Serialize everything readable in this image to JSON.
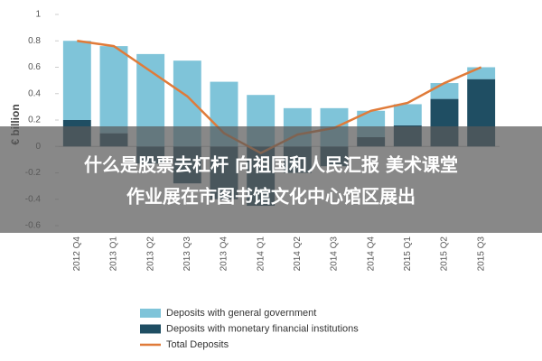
{
  "chart_data": {
    "type": "bar",
    "y_axis_label": "€ billion",
    "categories": [
      "2012 Q4",
      "2013 Q1",
      "2013 Q2",
      "2013 Q3",
      "2013 Q4",
      "2014 Q1",
      "2014 Q2",
      "2014 Q3",
      "2014 Q4",
      "2015 Q1",
      "2015 Q2",
      "2015 Q3"
    ],
    "series": [
      {
        "name": "Deposits with general government",
        "type": "bar",
        "color": "#7fc4d9",
        "values": [
          0.6,
          0.66,
          0.7,
          0.65,
          0.49,
          0.39,
          0.29,
          0.29,
          0.2,
          0.16,
          0.12,
          0.09
        ]
      },
      {
        "name": "Deposits with monetary financial institutions",
        "type": "bar",
        "color": "#1f4e63",
        "values": [
          0.2,
          0.1,
          -0.13,
          -0.28,
          -0.4,
          -0.45,
          -0.2,
          -0.15,
          0.07,
          0.16,
          0.36,
          0.51
        ]
      },
      {
        "name": "Total Deposits",
        "type": "line",
        "color": "#e07b39",
        "values": [
          0.8,
          0.76,
          0.57,
          0.38,
          0.1,
          -0.05,
          0.09,
          0.14,
          0.27,
          0.33,
          0.48,
          0.6
        ]
      }
    ],
    "ylim": [
      -0.6,
      1
    ],
    "yticks": [
      -0.6,
      -0.4,
      -0.2,
      0,
      0.2,
      0.4,
      0.6,
      0.8,
      1
    ]
  },
  "overlay_caption": [
    "什么是股票去杠杆 向祖国和人民汇报 美术课堂",
    "作业展在市图书馆文化中心馆区展出"
  ]
}
